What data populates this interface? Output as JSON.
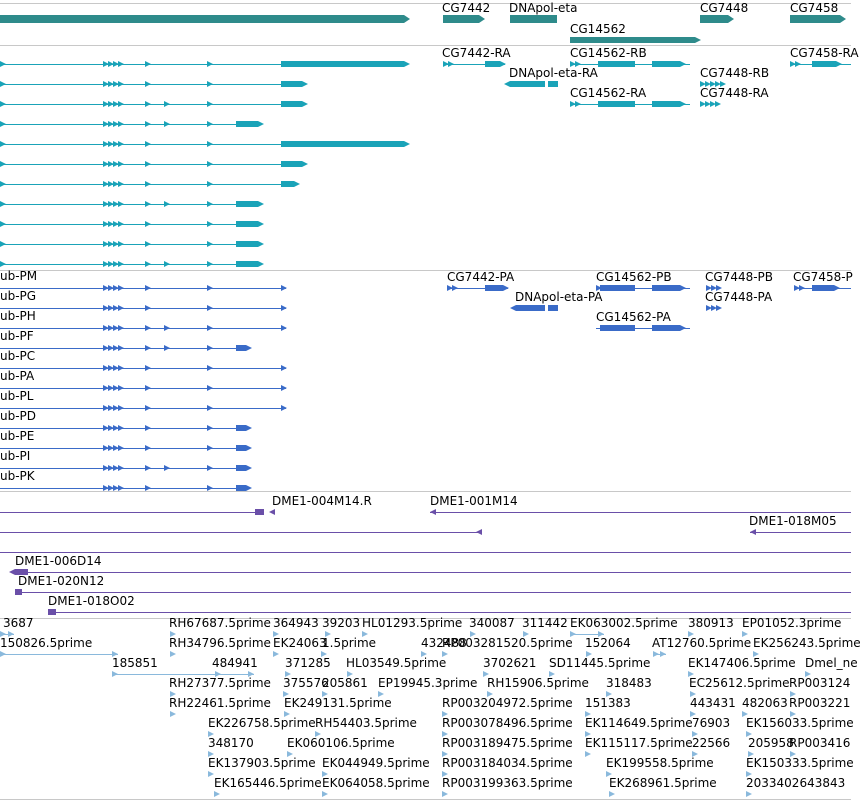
{
  "gene_labels": [
    "CG7442",
    "DNApol-eta",
    "CG14562",
    "CG7448",
    "CG7458"
  ],
  "transcript_labels": [
    "CG7442-RA",
    "CG14562-RB",
    "CG7458-RA",
    "DNApol-eta-RA",
    "CG7448-RB",
    "CG14562-RA",
    "CG7448-RA"
  ],
  "protein_labels": [
    "CG7442-PA",
    "CG14562-PB",
    "CG7448-PB",
    "CG7458-P",
    "DNApol-eta-PA",
    "CG7448-PA",
    "CG14562-PA",
    "ub-PM",
    "ub-PG",
    "ub-PH",
    "ub-PF",
    "ub-PC",
    "ub-PA",
    "ub-PL",
    "ub-PD",
    "ub-PE",
    "ub-PI",
    "ub-PK"
  ],
  "clone_labels": [
    "DME1-004M14.R",
    "DME1-001M14",
    "DME1-018M05",
    "DME1-006D14",
    "DME1-020N12",
    "DME1-018O02"
  ],
  "est_labels": [
    "3687",
    "RH67687.5prime",
    "364943",
    "39203",
    "HL01293.5prime",
    "340087",
    "311442",
    "EK063002.5prime",
    "380913",
    "EP01052.3prime",
    "150826.5prime",
    "RH34796.5prime",
    "EK24063",
    "1.5prime",
    "432488",
    "RP003281520.5prime",
    "152064",
    "AT12760.5prime",
    "EK256243.5prime",
    "185851",
    "484941",
    "371285",
    "HL03549.5prime",
    "3702621",
    "SD11445.5prime",
    "EK147406.5prime",
    "Dmel_ne",
    "RH27377.5prime",
    "375576",
    "205861",
    "EP19945.3prime",
    "RH15906.5prime",
    "318483",
    "EC25612.5prime",
    "RP003124",
    "RH22461.5prime",
    "EK249131.5prime",
    "RP003204972.5prime",
    "151383",
    "443431",
    "482063",
    "RP003221",
    "EK226758.5prime",
    "RH54403.5prime",
    "RP003078496.5prime",
    "EK114649.5prime",
    "76903",
    "EK156033.5prime",
    "348170",
    "EK060106.5prime",
    "RP003189475.5prime",
    "EK115117.5prime",
    "22566",
    "205958",
    "RP003416",
    "EK137903.5prime",
    "EK044949.5prime",
    "RP003184034.5prime",
    "EK199558.5prime",
    "EK150333.5prime",
    "EK165446.5prime",
    "EK064058.5prime",
    "RP003199363.5prime",
    "EK268961.5prime",
    "2033402643843"
  ],
  "colors": {
    "gene": "#2e8b8b",
    "transcript": "#1aa3b8",
    "protein": "#3a6bc8",
    "clone": "#6a4fa8",
    "est": "#8ab9dc",
    "separator": "#c8c8c8"
  }
}
